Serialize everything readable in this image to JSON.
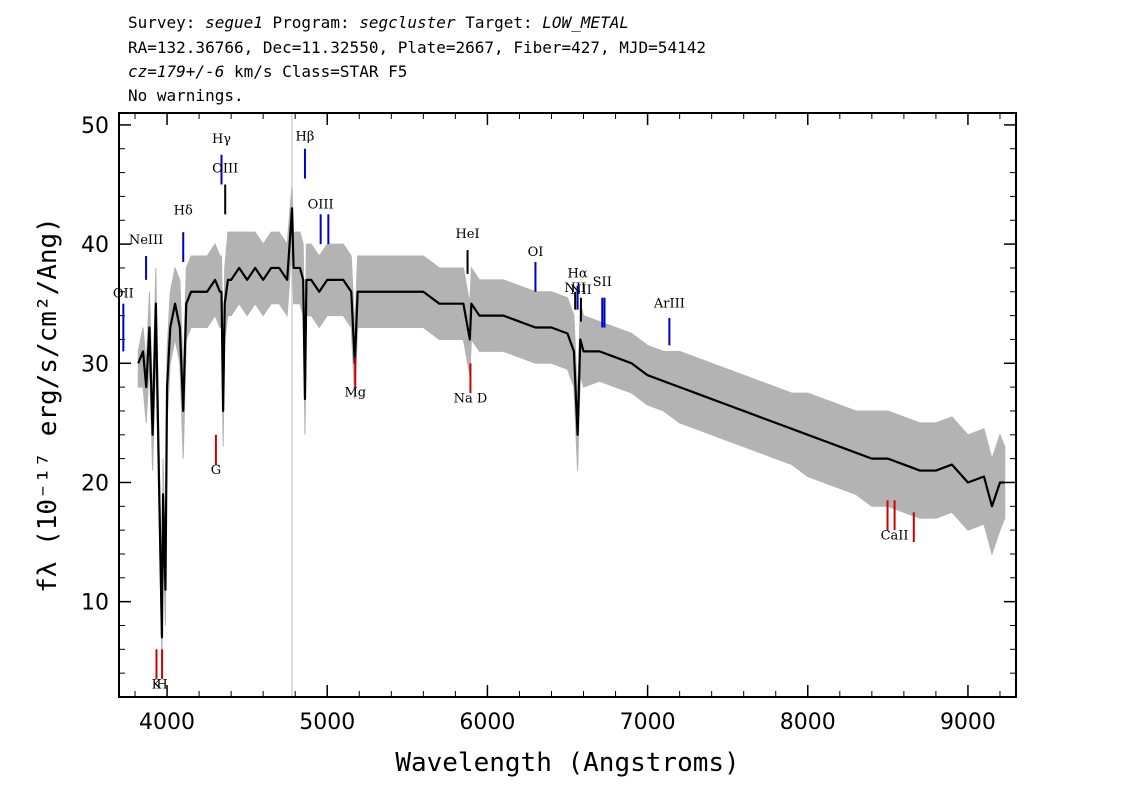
{
  "header": {
    "survey_label": "Survey:",
    "survey": "segue1",
    "program_label": "Program:",
    "program": "segcluster",
    "target_label": "Target:",
    "target": "LOW_METAL",
    "line2": "RA=132.36766, Dec=11.32550, Plate=2667, Fiber=427, MJD=54142",
    "redshift": "cz=179+/-6",
    "line3_rest": " km/s Class=STAR F5",
    "line4": "No warnings."
  },
  "chart_data": {
    "type": "line",
    "xlabel": "Wavelength (Angstroms)",
    "ylabel": "fλ (10⁻¹⁷ erg/s/cm²/Ang)",
    "xlim": [
      3700,
      9300
    ],
    "ylim": [
      2,
      51
    ],
    "x_ticks": [
      4000,
      5000,
      6000,
      7000,
      8000,
      9000
    ],
    "x_tick_labels": [
      "4000",
      "5000",
      "6000",
      "7000",
      "8000",
      "9000"
    ],
    "y_ticks": [
      10,
      20,
      30,
      40,
      50
    ],
    "y_tick_labels": [
      "10",
      "20",
      "30",
      "40",
      "50"
    ],
    "vertical_marker_x": 4780,
    "grid": false,
    "series": [
      {
        "role": "smoothed spectrum",
        "color": "#000000",
        "x": [
          3820,
          3850,
          3870,
          3890,
          3910,
          3930,
          3950,
          3968,
          3975,
          3990,
          4000,
          4020,
          4050,
          4080,
          4101,
          4120,
          4150,
          4200,
          4250,
          4300,
          4330,
          4340,
          4350,
          4360,
          4380,
          4400,
          4450,
          4500,
          4550,
          4600,
          4650,
          4700,
          4750,
          4780,
          4790,
          4800,
          4830,
          4850,
          4861,
          4870,
          4900,
          4950,
          5000,
          5100,
          5150,
          5172,
          5190,
          5250,
          5300,
          5400,
          5500,
          5600,
          5700,
          5800,
          5850,
          5890,
          5900,
          5950,
          6000,
          6100,
          6200,
          6300,
          6400,
          6500,
          6540,
          6563,
          6580,
          6600,
          6700,
          6800,
          6900,
          7000,
          7100,
          7200,
          7300,
          7400,
          7500,
          7600,
          7700,
          7800,
          7900,
          8000,
          8100,
          8200,
          8300,
          8400,
          8500,
          8600,
          8700,
          8800,
          8900,
          9000,
          9100,
          9150,
          9200,
          9230
        ],
        "y": [
          30,
          31,
          28,
          33,
          24,
          35,
          20,
          7,
          19,
          11,
          28,
          33,
          35,
          33,
          26,
          35,
          36,
          36,
          36,
          37,
          36,
          36,
          26,
          35,
          37,
          37,
          38,
          37,
          38,
          37,
          38,
          38,
          37,
          43,
          38,
          38,
          38,
          37,
          27,
          37,
          37,
          36,
          37,
          37,
          36,
          30,
          36,
          36,
          36,
          36,
          36,
          36,
          35,
          35,
          35,
          32,
          35,
          34,
          34,
          34,
          33.5,
          33,
          33,
          32.5,
          31,
          24,
          32,
          31,
          31,
          30.5,
          30,
          29,
          28.5,
          28,
          27.5,
          27,
          26.5,
          26,
          25.5,
          25,
          24.5,
          24,
          23.5,
          23,
          22.5,
          22,
          22,
          21.5,
          21,
          21,
          21.5,
          20,
          20.5,
          18,
          20,
          20
        ]
      },
      {
        "role": "noise envelope",
        "color": "#b3b3b3",
        "upper": [
          31,
          33,
          30,
          36,
          27,
          38,
          23,
          9,
          22,
          14,
          31,
          36,
          38,
          37,
          29,
          38,
          39,
          39,
          39,
          40,
          39,
          39,
          29,
          38,
          41,
          41,
          41,
          41,
          41,
          40,
          41,
          41,
          40,
          45,
          41,
          41,
          41,
          40,
          30,
          40,
          40,
          39,
          40,
          40,
          39,
          33,
          39,
          39,
          39,
          39,
          39,
          39,
          38,
          38,
          38,
          35,
          38,
          37,
          37,
          37,
          36.5,
          36,
          36,
          35.5,
          34,
          27,
          35,
          34,
          33.5,
          33,
          32.5,
          31.5,
          31,
          31,
          30.5,
          30,
          29.5,
          29,
          28.5,
          28,
          27.5,
          27.5,
          27,
          26.5,
          26,
          26,
          26,
          25.5,
          25,
          25,
          25.5,
          24,
          24.5,
          22,
          24,
          23
        ],
        "lower": [
          28,
          28,
          25,
          30,
          21,
          31,
          17,
          5,
          16,
          8,
          25,
          30,
          32,
          30,
          22,
          32,
          33,
          33,
          33,
          34,
          33,
          33,
          23,
          32,
          34,
          34,
          35,
          34,
          35,
          34,
          35,
          35,
          34,
          40,
          35,
          35,
          35,
          34,
          24,
          34,
          34,
          33,
          34,
          34,
          33,
          27,
          33,
          33,
          33,
          33,
          33,
          33,
          32,
          32,
          32,
          29,
          32,
          31,
          31,
          31,
          30.5,
          30,
          30,
          29.5,
          28,
          21,
          29,
          28,
          28.5,
          28,
          27.5,
          26.5,
          26,
          25,
          24.5,
          24,
          23.5,
          23,
          22.5,
          22,
          21.5,
          20.5,
          20,
          19.5,
          19,
          18,
          18,
          17.5,
          17,
          17,
          17.5,
          16,
          16.5,
          14,
          16,
          17
        ]
      }
    ],
    "emission_lines": [
      {
        "label": "OII",
        "x": 3727,
        "y1": 35,
        "y2": 31,
        "label_y": 35.5,
        "color": "#0000cc"
      },
      {
        "label": "NeIII",
        "x": 3869,
        "y1": 39,
        "y2": 37,
        "label_y": 40,
        "color": "#0000cc"
      },
      {
        "label": "Hδ",
        "x": 4101,
        "y1": 41,
        "y2": 38.5,
        "label_y": 42.5,
        "color": "#0000cc"
      },
      {
        "label": "Hγ",
        "x": 4340,
        "y1": 47.5,
        "y2": 45,
        "label_y": 48.5,
        "color": "#0000cc"
      },
      {
        "label": "OIII",
        "x": 4363,
        "y1": 45,
        "y2": 42.5,
        "label_y": 46,
        "color": "#000000"
      },
      {
        "label": "Hβ",
        "x": 4861,
        "y1": 48,
        "y2": 45.5,
        "label_y": 48.7,
        "color": "#0000cc"
      },
      {
        "label": "OIII",
        "x": 4959,
        "y1": 42.5,
        "y2": 40,
        "label_y": 43,
        "color": "#0000cc"
      },
      {
        "label": "",
        "x": 5007,
        "y1": 42.5,
        "y2": 40,
        "label_y": 0,
        "color": "#0000cc"
      },
      {
        "label": "HeI",
        "x": 5876,
        "y1": 39.5,
        "y2": 37.5,
        "label_y": 40.5,
        "color": "#000000"
      },
      {
        "label": "OI",
        "x": 6300,
        "y1": 38.5,
        "y2": 36,
        "label_y": 39,
        "color": "#0000cc"
      },
      {
        "label": "NII",
        "x": 6548,
        "y1": 36,
        "y2": 34.5,
        "label_y": 36,
        "color": "#000000"
      },
      {
        "label": "Hα",
        "x": 6563,
        "y1": 36.5,
        "y2": 34.5,
        "label_y": 37.2,
        "color": "#0000cc"
      },
      {
        "label": "NII",
        "x": 6584,
        "y1": 35.5,
        "y2": 33.5,
        "label_y": 35.8,
        "color": "#000000"
      },
      {
        "label": "SII",
        "x": 6717,
        "y1": 35.5,
        "y2": 33,
        "label_y": 36.5,
        "color": "#0000cc"
      },
      {
        "label": "",
        "x": 6731,
        "y1": 35.5,
        "y2": 33,
        "label_y": 0,
        "color": "#0000cc"
      },
      {
        "label": "ArIII",
        "x": 7136,
        "y1": 33.8,
        "y2": 31.5,
        "label_y": 34.7,
        "color": "#0000cc"
      }
    ],
    "absorption_lines": [
      {
        "label": "K",
        "x": 3934,
        "y1": 6,
        "y2": 3.5,
        "label_y": 2.7,
        "color": "#cc0000"
      },
      {
        "label": "H",
        "x": 3969,
        "y1": 6,
        "y2": 3.5,
        "label_y": 2.7,
        "color": "#cc0000"
      },
      {
        "label": "G",
        "x": 4305,
        "y1": 24,
        "y2": 21.5,
        "label_y": 20.7,
        "color": "#cc0000"
      },
      {
        "label": "Mg",
        "x": 5175,
        "y1": 30.5,
        "y2": 28,
        "label_y": 27.2,
        "color": "#cc0000"
      },
      {
        "label": "Na D",
        "x": 5894,
        "y1": 30,
        "y2": 27.5,
        "label_y": 26.7,
        "color": "#cc0000"
      },
      {
        "label": "",
        "x": 8498,
        "y1": 18.5,
        "y2": 16,
        "label_y": 0,
        "color": "#cc0000"
      },
      {
        "label": "CaII",
        "x": 8542,
        "y1": 18.5,
        "y2": 16,
        "label_y": 15.2,
        "color": "#cc0000"
      },
      {
        "label": "",
        "x": 8662,
        "y1": 17.5,
        "y2": 15,
        "label_y": 0,
        "color": "#cc0000"
      }
    ]
  }
}
